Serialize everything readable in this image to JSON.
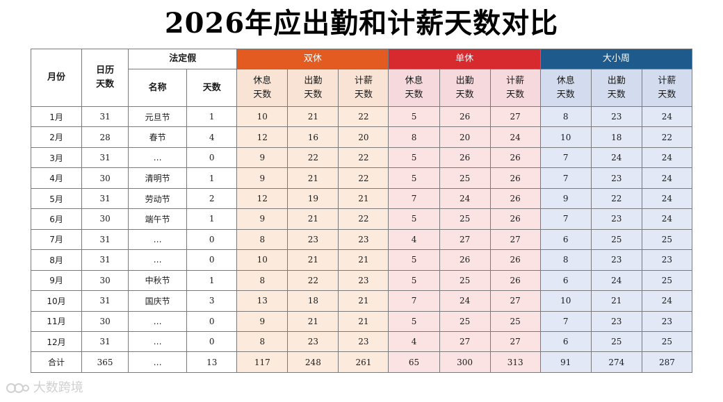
{
  "title": "2026年应出勤和计薪天数对比",
  "colors": {
    "double": "#E35B20",
    "single": "#D62A2F",
    "bigsmall": "#1E5A8C"
  },
  "header": {
    "month": "月份",
    "calendar_days": "日历\n天数",
    "holiday_group": "法定假",
    "holiday_name": "名称",
    "holiday_days": "天数",
    "group_double": "双休",
    "group_single": "单休",
    "group_bigsmall": "大小周",
    "rest_days": "休息\n天数",
    "work_days": "出勤\n天数",
    "paid_days": "计薪\n天数"
  },
  "watermark": "大数跨境",
  "chart_data": {
    "type": "table",
    "title": "2026年应出勤和计薪天数对比",
    "rows": [
      {
        "month": "1月",
        "calendar": "31",
        "holiday": "元旦节",
        "holiday_days": "1",
        "double": [
          "10",
          "21",
          "22"
        ],
        "single": [
          "5",
          "26",
          "27"
        ],
        "bigsmall": [
          "8",
          "23",
          "24"
        ]
      },
      {
        "month": "2月",
        "calendar": "28",
        "holiday": "春节",
        "holiday_days": "4",
        "double": [
          "12",
          "16",
          "20"
        ],
        "single": [
          "8",
          "20",
          "24"
        ],
        "bigsmall": [
          "10",
          "18",
          "22"
        ]
      },
      {
        "month": "3月",
        "calendar": "31",
        "holiday": "…",
        "holiday_days": "0",
        "double": [
          "9",
          "22",
          "22"
        ],
        "single": [
          "5",
          "26",
          "26"
        ],
        "bigsmall": [
          "7",
          "24",
          "24"
        ]
      },
      {
        "month": "4月",
        "calendar": "30",
        "holiday": "清明节",
        "holiday_days": "1",
        "double": [
          "9",
          "21",
          "22"
        ],
        "single": [
          "5",
          "25",
          "26"
        ],
        "bigsmall": [
          "7",
          "23",
          "24"
        ]
      },
      {
        "month": "5月",
        "calendar": "31",
        "holiday": "劳动节",
        "holiday_days": "2",
        "double": [
          "12",
          "19",
          "21"
        ],
        "single": [
          "7",
          "24",
          "26"
        ],
        "bigsmall": [
          "9",
          "22",
          "24"
        ]
      },
      {
        "month": "6月",
        "calendar": "30",
        "holiday": "端午节",
        "holiday_days": "1",
        "double": [
          "9",
          "21",
          "22"
        ],
        "single": [
          "5",
          "25",
          "26"
        ],
        "bigsmall": [
          "7",
          "23",
          "24"
        ]
      },
      {
        "month": "7月",
        "calendar": "31",
        "holiday": "…",
        "holiday_days": "0",
        "double": [
          "8",
          "23",
          "23"
        ],
        "single": [
          "4",
          "27",
          "27"
        ],
        "bigsmall": [
          "6",
          "25",
          "25"
        ]
      },
      {
        "month": "8月",
        "calendar": "31",
        "holiday": "…",
        "holiday_days": "0",
        "double": [
          "10",
          "21",
          "21"
        ],
        "single": [
          "5",
          "26",
          "26"
        ],
        "bigsmall": [
          "8",
          "23",
          "23"
        ]
      },
      {
        "month": "9月",
        "calendar": "30",
        "holiday": "中秋节",
        "holiday_days": "1",
        "double": [
          "8",
          "22",
          "23"
        ],
        "single": [
          "5",
          "25",
          "26"
        ],
        "bigsmall": [
          "6",
          "24",
          "25"
        ]
      },
      {
        "month": "10月",
        "calendar": "31",
        "holiday": "国庆节",
        "holiday_days": "3",
        "double": [
          "13",
          "18",
          "21"
        ],
        "single": [
          "7",
          "24",
          "27"
        ],
        "bigsmall": [
          "10",
          "21",
          "24"
        ]
      },
      {
        "month": "11月",
        "calendar": "30",
        "holiday": "…",
        "holiday_days": "0",
        "double": [
          "9",
          "21",
          "21"
        ],
        "single": [
          "5",
          "25",
          "25"
        ],
        "bigsmall": [
          "7",
          "23",
          "23"
        ]
      },
      {
        "month": "12月",
        "calendar": "31",
        "holiday": "…",
        "holiday_days": "0",
        "double": [
          "8",
          "23",
          "23"
        ],
        "single": [
          "4",
          "27",
          "27"
        ],
        "bigsmall": [
          "6",
          "25",
          "25"
        ]
      }
    ],
    "total": {
      "month": "合计",
      "calendar": "365",
      "holiday": "…",
      "holiday_days": "13",
      "double": [
        "117",
        "248",
        "261"
      ],
      "single": [
        "65",
        "300",
        "313"
      ],
      "bigsmall": [
        "91",
        "274",
        "287"
      ]
    }
  }
}
